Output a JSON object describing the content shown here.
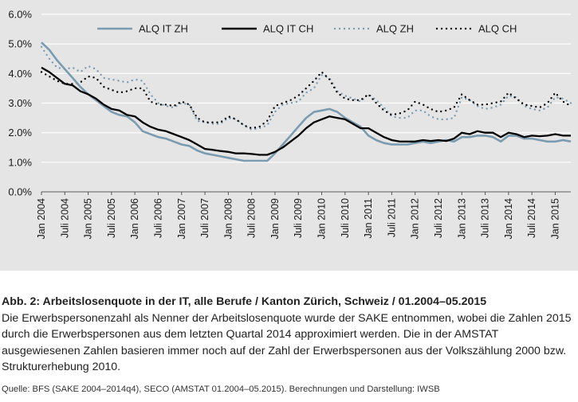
{
  "chart_data": {
    "type": "line",
    "yticks": [
      "0.0%",
      "1.0%",
      "2.0%",
      "3.0%",
      "4.0%",
      "5.0%",
      "6.0%"
    ],
    "ylim": [
      0,
      6
    ],
    "xticks": [
      "Jan 2004",
      "Juli 2004",
      "Jan 2005",
      "Juli 2005",
      "Jan 2006",
      "Juli 2006",
      "Jan 2007",
      "Juli 2007",
      "Jan 2008",
      "Juli 2008",
      "Jan 2009",
      "Juli 2009",
      "Jan 2010",
      "Juli 2010",
      "Jan 2011",
      "Juli 2011",
      "Jan 2012",
      "Juli 2012",
      "Jan 2013",
      "Juli 2013",
      "Jan 2014",
      "Juli 2014",
      "Jan 2015"
    ],
    "x_start": "2004-01",
    "x_end": "2015-05",
    "grid": "horizontal",
    "legend_position": "top",
    "series": [
      {
        "name": "ALQ IT ZH",
        "color": "#7a9bb0",
        "style": "solid",
        "points": [
          [
            "2004-01",
            5.05
          ],
          [
            "2004-03",
            4.8
          ],
          [
            "2004-05",
            4.45
          ],
          [
            "2004-07",
            4.15
          ],
          [
            "2004-09",
            3.85
          ],
          [
            "2004-11",
            3.55
          ],
          [
            "2005-01",
            3.3
          ],
          [
            "2005-03",
            3.1
          ],
          [
            "2005-05",
            2.9
          ],
          [
            "2005-07",
            2.7
          ],
          [
            "2005-09",
            2.6
          ],
          [
            "2005-11",
            2.55
          ],
          [
            "2006-01",
            2.35
          ],
          [
            "2006-03",
            2.05
          ],
          [
            "2006-05",
            1.95
          ],
          [
            "2006-07",
            1.85
          ],
          [
            "2006-09",
            1.8
          ],
          [
            "2006-11",
            1.7
          ],
          [
            "2007-01",
            1.6
          ],
          [
            "2007-03",
            1.55
          ],
          [
            "2007-05",
            1.4
          ],
          [
            "2007-07",
            1.3
          ],
          [
            "2007-09",
            1.25
          ],
          [
            "2007-11",
            1.2
          ],
          [
            "2008-01",
            1.15
          ],
          [
            "2008-03",
            1.1
          ],
          [
            "2008-05",
            1.05
          ],
          [
            "2008-07",
            1.05
          ],
          [
            "2008-09",
            1.05
          ],
          [
            "2008-11",
            1.05
          ],
          [
            "2009-01",
            1.3
          ],
          [
            "2009-03",
            1.6
          ],
          [
            "2009-05",
            1.9
          ],
          [
            "2009-07",
            2.2
          ],
          [
            "2009-09",
            2.5
          ],
          [
            "2009-11",
            2.7
          ],
          [
            "2010-01",
            2.75
          ],
          [
            "2010-03",
            2.8
          ],
          [
            "2010-05",
            2.7
          ],
          [
            "2010-07",
            2.5
          ],
          [
            "2010-09",
            2.35
          ],
          [
            "2010-11",
            2.2
          ],
          [
            "2011-01",
            1.9
          ],
          [
            "2011-03",
            1.75
          ],
          [
            "2011-05",
            1.65
          ],
          [
            "2011-07",
            1.6
          ],
          [
            "2011-09",
            1.6
          ],
          [
            "2011-11",
            1.6
          ],
          [
            "2012-01",
            1.65
          ],
          [
            "2012-03",
            1.7
          ],
          [
            "2012-05",
            1.65
          ],
          [
            "2012-07",
            1.7
          ],
          [
            "2012-09",
            1.75
          ],
          [
            "2012-11",
            1.7
          ],
          [
            "2013-01",
            1.85
          ],
          [
            "2013-03",
            1.85
          ],
          [
            "2013-05",
            1.9
          ],
          [
            "2013-07",
            1.9
          ],
          [
            "2013-09",
            1.85
          ],
          [
            "2013-11",
            1.7
          ],
          [
            "2014-01",
            1.9
          ],
          [
            "2014-03",
            1.9
          ],
          [
            "2014-05",
            1.8
          ],
          [
            "2014-07",
            1.8
          ],
          [
            "2014-09",
            1.75
          ],
          [
            "2014-11",
            1.7
          ],
          [
            "2015-01",
            1.7
          ],
          [
            "2015-03",
            1.75
          ],
          [
            "2015-05",
            1.7
          ]
        ]
      },
      {
        "name": "ALQ IT CH",
        "color": "#000000",
        "style": "solid",
        "points": [
          [
            "2004-01",
            4.2
          ],
          [
            "2004-03",
            4.05
          ],
          [
            "2004-05",
            3.85
          ],
          [
            "2004-07",
            3.65
          ],
          [
            "2004-09",
            3.6
          ],
          [
            "2004-11",
            3.4
          ],
          [
            "2005-01",
            3.3
          ],
          [
            "2005-03",
            3.15
          ],
          [
            "2005-05",
            2.95
          ],
          [
            "2005-07",
            2.8
          ],
          [
            "2005-09",
            2.75
          ],
          [
            "2005-11",
            2.6
          ],
          [
            "2006-01",
            2.55
          ],
          [
            "2006-03",
            2.35
          ],
          [
            "2006-05",
            2.2
          ],
          [
            "2006-07",
            2.1
          ],
          [
            "2006-09",
            2.05
          ],
          [
            "2006-11",
            1.95
          ],
          [
            "2007-01",
            1.85
          ],
          [
            "2007-03",
            1.75
          ],
          [
            "2007-05",
            1.6
          ],
          [
            "2007-07",
            1.45
          ],
          [
            "2007-09",
            1.42
          ],
          [
            "2007-11",
            1.38
          ],
          [
            "2008-01",
            1.35
          ],
          [
            "2008-03",
            1.3
          ],
          [
            "2008-05",
            1.3
          ],
          [
            "2008-07",
            1.28
          ],
          [
            "2008-09",
            1.25
          ],
          [
            "2008-11",
            1.25
          ],
          [
            "2009-01",
            1.35
          ],
          [
            "2009-03",
            1.5
          ],
          [
            "2009-05",
            1.7
          ],
          [
            "2009-07",
            1.9
          ],
          [
            "2009-09",
            2.15
          ],
          [
            "2009-11",
            2.35
          ],
          [
            "2010-01",
            2.45
          ],
          [
            "2010-03",
            2.55
          ],
          [
            "2010-05",
            2.5
          ],
          [
            "2010-07",
            2.45
          ],
          [
            "2010-09",
            2.3
          ],
          [
            "2010-11",
            2.15
          ],
          [
            "2011-01",
            2.15
          ],
          [
            "2011-03",
            2.0
          ],
          [
            "2011-05",
            1.85
          ],
          [
            "2011-07",
            1.75
          ],
          [
            "2011-09",
            1.7
          ],
          [
            "2011-11",
            1.7
          ],
          [
            "2012-01",
            1.7
          ],
          [
            "2012-03",
            1.75
          ],
          [
            "2012-05",
            1.72
          ],
          [
            "2012-07",
            1.75
          ],
          [
            "2012-09",
            1.72
          ],
          [
            "2012-11",
            1.8
          ],
          [
            "2013-01",
            2.0
          ],
          [
            "2013-03",
            1.95
          ],
          [
            "2013-05",
            2.05
          ],
          [
            "2013-07",
            2.0
          ],
          [
            "2013-09",
            2.0
          ],
          [
            "2013-11",
            1.85
          ],
          [
            "2014-01",
            2.0
          ],
          [
            "2014-03",
            1.95
          ],
          [
            "2014-05",
            1.85
          ],
          [
            "2014-07",
            1.9
          ],
          [
            "2014-09",
            1.88
          ],
          [
            "2014-11",
            1.9
          ],
          [
            "2015-01",
            1.95
          ],
          [
            "2015-03",
            1.9
          ],
          [
            "2015-05",
            1.9
          ]
        ]
      },
      {
        "name": "ALQ ZH",
        "color": "#7a9bb0",
        "style": "dotted",
        "points": [
          [
            "2004-01",
            4.9
          ],
          [
            "2004-03",
            4.5
          ],
          [
            "2004-05",
            4.2
          ],
          [
            "2004-07",
            4.15
          ],
          [
            "2004-09",
            4.2
          ],
          [
            "2004-11",
            4.05
          ],
          [
            "2005-01",
            4.25
          ],
          [
            "2005-03",
            4.15
          ],
          [
            "2005-05",
            3.85
          ],
          [
            "2005-07",
            3.8
          ],
          [
            "2005-09",
            3.75
          ],
          [
            "2005-11",
            3.7
          ],
          [
            "2006-01",
            3.8
          ],
          [
            "2006-03",
            3.75
          ],
          [
            "2006-05",
            3.3
          ],
          [
            "2006-07",
            3.0
          ],
          [
            "2006-09",
            2.9
          ],
          [
            "2006-11",
            2.85
          ],
          [
            "2007-01",
            3.0
          ],
          [
            "2007-03",
            2.95
          ],
          [
            "2007-05",
            2.4
          ],
          [
            "2007-07",
            2.35
          ],
          [
            "2007-09",
            2.3
          ],
          [
            "2007-11",
            2.3
          ],
          [
            "2008-01",
            2.5
          ],
          [
            "2008-03",
            2.45
          ],
          [
            "2008-05",
            2.25
          ],
          [
            "2008-07",
            2.1
          ],
          [
            "2008-09",
            2.15
          ],
          [
            "2008-11",
            2.25
          ],
          [
            "2009-01",
            2.7
          ],
          [
            "2009-03",
            2.95
          ],
          [
            "2009-05",
            3.0
          ],
          [
            "2009-07",
            3.05
          ],
          [
            "2009-09",
            3.35
          ],
          [
            "2009-11",
            3.5
          ],
          [
            "2010-01",
            3.95
          ],
          [
            "2010-03",
            3.85
          ],
          [
            "2010-05",
            3.4
          ],
          [
            "2010-07",
            3.25
          ],
          [
            "2010-09",
            3.15
          ],
          [
            "2010-11",
            3.05
          ],
          [
            "2011-01",
            3.3
          ],
          [
            "2011-03",
            3.1
          ],
          [
            "2011-05",
            2.85
          ],
          [
            "2011-07",
            2.55
          ],
          [
            "2011-09",
            2.5
          ],
          [
            "2011-11",
            2.5
          ],
          [
            "2012-01",
            2.75
          ],
          [
            "2012-03",
            2.75
          ],
          [
            "2012-05",
            2.55
          ],
          [
            "2012-07",
            2.45
          ],
          [
            "2012-09",
            2.45
          ],
          [
            "2012-11",
            2.5
          ],
          [
            "2013-01",
            3.2
          ],
          [
            "2013-03",
            3.1
          ],
          [
            "2013-05",
            2.9
          ],
          [
            "2013-07",
            2.8
          ],
          [
            "2013-09",
            2.85
          ],
          [
            "2013-11",
            2.95
          ],
          [
            "2014-01",
            3.25
          ],
          [
            "2014-03",
            3.2
          ],
          [
            "2014-05",
            2.9
          ],
          [
            "2014-07",
            2.8
          ],
          [
            "2014-09",
            2.75
          ],
          [
            "2014-11",
            2.85
          ],
          [
            "2015-01",
            3.2
          ],
          [
            "2015-03",
            3.15
          ],
          [
            "2015-05",
            3.0
          ]
        ]
      },
      {
        "name": "ALQ CH",
        "color": "#000000",
        "style": "dotted",
        "points": [
          [
            "2004-01",
            4.05
          ],
          [
            "2004-03",
            3.9
          ],
          [
            "2004-05",
            3.75
          ],
          [
            "2004-07",
            3.65
          ],
          [
            "2004-09",
            3.65
          ],
          [
            "2004-11",
            3.7
          ],
          [
            "2005-01",
            3.9
          ],
          [
            "2005-03",
            3.85
          ],
          [
            "2005-05",
            3.55
          ],
          [
            "2005-07",
            3.45
          ],
          [
            "2005-09",
            3.35
          ],
          [
            "2005-11",
            3.4
          ],
          [
            "2006-01",
            3.5
          ],
          [
            "2006-03",
            3.5
          ],
          [
            "2006-05",
            3.05
          ],
          [
            "2006-07",
            2.95
          ],
          [
            "2006-09",
            2.95
          ],
          [
            "2006-11",
            2.9
          ],
          [
            "2007-01",
            3.05
          ],
          [
            "2007-03",
            2.95
          ],
          [
            "2007-05",
            2.5
          ],
          [
            "2007-07",
            2.35
          ],
          [
            "2007-09",
            2.35
          ],
          [
            "2007-11",
            2.35
          ],
          [
            "2008-01",
            2.55
          ],
          [
            "2008-03",
            2.45
          ],
          [
            "2008-05",
            2.25
          ],
          [
            "2008-07",
            2.15
          ],
          [
            "2008-09",
            2.2
          ],
          [
            "2008-11",
            2.4
          ],
          [
            "2009-01",
            2.9
          ],
          [
            "2009-03",
            3.0
          ],
          [
            "2009-05",
            3.1
          ],
          [
            "2009-07",
            3.25
          ],
          [
            "2009-09",
            3.5
          ],
          [
            "2009-11",
            3.75
          ],
          [
            "2010-01",
            4.05
          ],
          [
            "2010-03",
            3.8
          ],
          [
            "2010-05",
            3.35
          ],
          [
            "2010-07",
            3.15
          ],
          [
            "2010-09",
            3.1
          ],
          [
            "2010-11",
            3.1
          ],
          [
            "2011-01",
            3.3
          ],
          [
            "2011-03",
            3.0
          ],
          [
            "2011-05",
            2.75
          ],
          [
            "2011-07",
            2.6
          ],
          [
            "2011-09",
            2.65
          ],
          [
            "2011-11",
            2.75
          ],
          [
            "2012-01",
            3.05
          ],
          [
            "2012-03",
            2.95
          ],
          [
            "2012-05",
            2.8
          ],
          [
            "2012-07",
            2.7
          ],
          [
            "2012-09",
            2.75
          ],
          [
            "2012-11",
            2.85
          ],
          [
            "2013-01",
            3.3
          ],
          [
            "2013-03",
            3.1
          ],
          [
            "2013-05",
            2.95
          ],
          [
            "2013-07",
            2.95
          ],
          [
            "2013-09",
            3.0
          ],
          [
            "2013-11",
            3.05
          ],
          [
            "2014-01",
            3.35
          ],
          [
            "2014-03",
            3.15
          ],
          [
            "2014-05",
            2.95
          ],
          [
            "2014-07",
            2.9
          ],
          [
            "2014-09",
            2.85
          ],
          [
            "2014-11",
            3.0
          ],
          [
            "2015-01",
            3.35
          ],
          [
            "2015-03",
            3.05
          ],
          [
            "2015-05",
            2.9
          ]
        ]
      }
    ]
  },
  "caption": {
    "title": "Abb. 2: Arbeitslosenquote in der IT, alle Berufe / Kanton Zürich, Schweiz / 01.2004–05.2015",
    "body": "Die Erwerbspersonenzahl als Nenner der Arbeitslosenquote wurde der SAKE entnommen, wobei die Zahlen 2015 durch die Erwerbspersonen aus dem letzten Quartal 2014 approximiert werden. Die in der AMSTAT ausgewiesenen Zahlen basieren immer noch auf der Zahl der Erwerbspersonen aus der Volkszählung 2000 bzw. Strukturerhebung 2010.",
    "source": "Quelle: BFS (SAKE 2004–2014q4), SECO (AMSTAT 01.2004–05.2015). Berechnungen und Darstellung: IWSB"
  }
}
